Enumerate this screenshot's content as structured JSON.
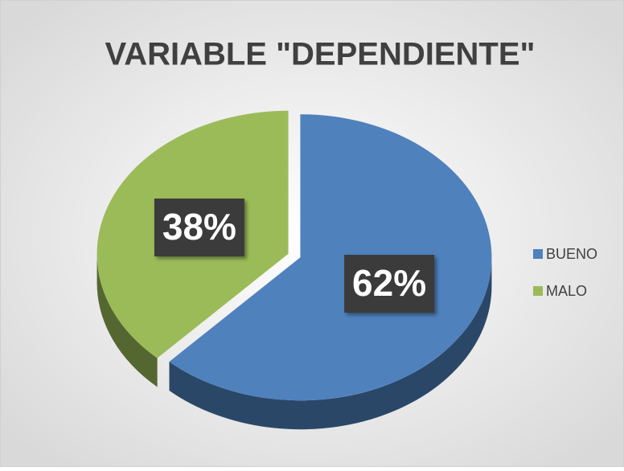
{
  "chart_data": {
    "type": "pie",
    "title": "VARIABLE \"DEPENDIENTE\"",
    "categories": [
      "BUENO",
      "MALO"
    ],
    "values": [
      62,
      38
    ],
    "value_labels": [
      "62%",
      "38%"
    ],
    "colors": [
      "#4f81bd",
      "#9bbb59"
    ],
    "legend": "right"
  }
}
